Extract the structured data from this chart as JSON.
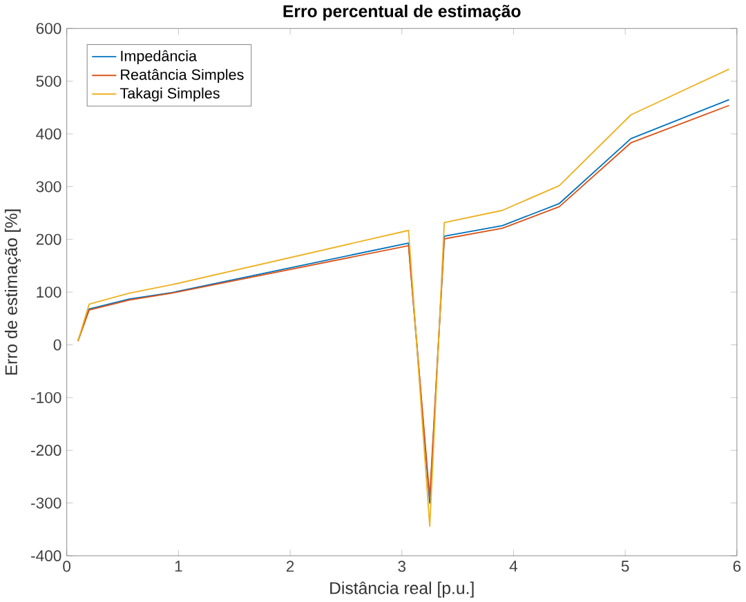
{
  "chart_data": {
    "type": "line",
    "title": "Erro percentual de estimação",
    "xlabel": "Distância real [p.u.]",
    "ylabel": "Erro de estimação [%]",
    "xlim": [
      0,
      6
    ],
    "ylim": [
      -400,
      600
    ],
    "xticks": [
      0,
      1,
      2,
      3,
      4,
      5,
      6
    ],
    "yticks": [
      -400,
      -300,
      -200,
      -100,
      0,
      100,
      200,
      300,
      400,
      500,
      600
    ],
    "grid": false,
    "legend": "top left",
    "line_style": "solid",
    "marker": "none",
    "x": [
      0.1,
      0.2,
      0.56,
      0.94,
      3.06,
      3.25,
      3.38,
      3.9,
      4.41,
      5.05,
      5.93
    ],
    "series": [
      {
        "name": "Impedância",
        "color": "#0072bd",
        "values": [
          7,
          68,
          87,
          99,
          193,
          -300,
          206,
          226,
          268,
          391,
          465
        ]
      },
      {
        "name": "Reatância Simples",
        "color": "#d95319",
        "values": [
          7,
          66,
          85,
          98,
          188,
          -290,
          201,
          221,
          262,
          383,
          454
        ]
      },
      {
        "name": "Takagi Simples",
        "color": "#edb120",
        "values": [
          7,
          77,
          98,
          114,
          217,
          -344,
          232,
          255,
          302,
          436,
          523
        ]
      }
    ]
  }
}
